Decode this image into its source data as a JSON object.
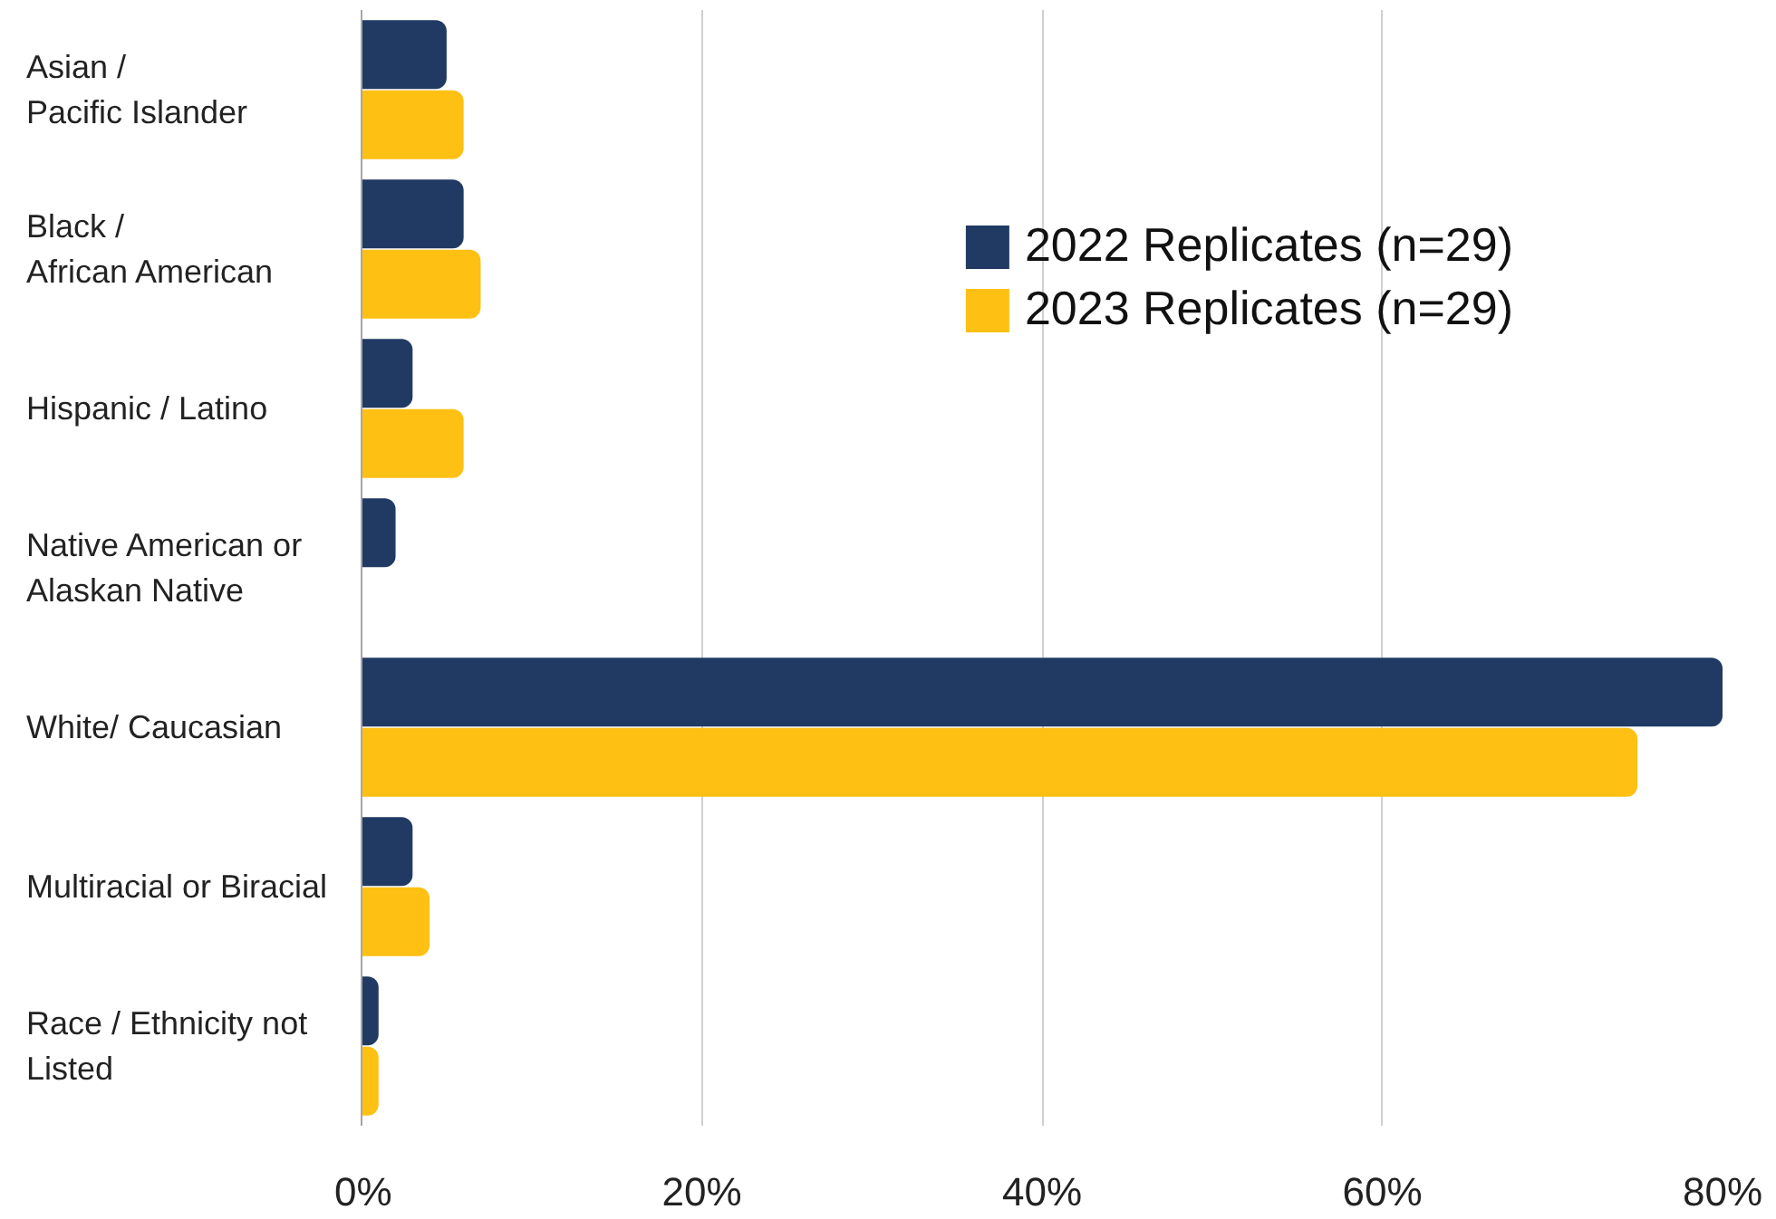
{
  "chart_data": {
    "type": "bar",
    "orientation": "horizontal",
    "categories": [
      "Asian /\nPacific Islander",
      "Black /\nAfrican American",
      "Hispanic / Latino",
      "Native American or\nAlaskan Native",
      "White/ Caucasian",
      "Multiracial or Biracial",
      "Race / Ethnicity not\nListed"
    ],
    "series": [
      {
        "name": "2022 Replicates (n=29)",
        "color": "#213a64",
        "values": [
          5,
          6,
          3,
          2,
          80,
          3,
          1
        ]
      },
      {
        "name": "2023 Replicates (n=29)",
        "color": "#fec013",
        "values": [
          6,
          7,
          6,
          0,
          75,
          4,
          1
        ]
      }
    ],
    "xlim": [
      0,
      80
    ],
    "xticks": [
      {
        "value": 0,
        "label": "0%"
      },
      {
        "value": 20,
        "label": "20%"
      },
      {
        "value": 40,
        "label": "40%"
      },
      {
        "value": 60,
        "label": "60%"
      },
      {
        "value": 80,
        "label": "80%"
      }
    ],
    "grid": "x",
    "legend": "top right"
  }
}
